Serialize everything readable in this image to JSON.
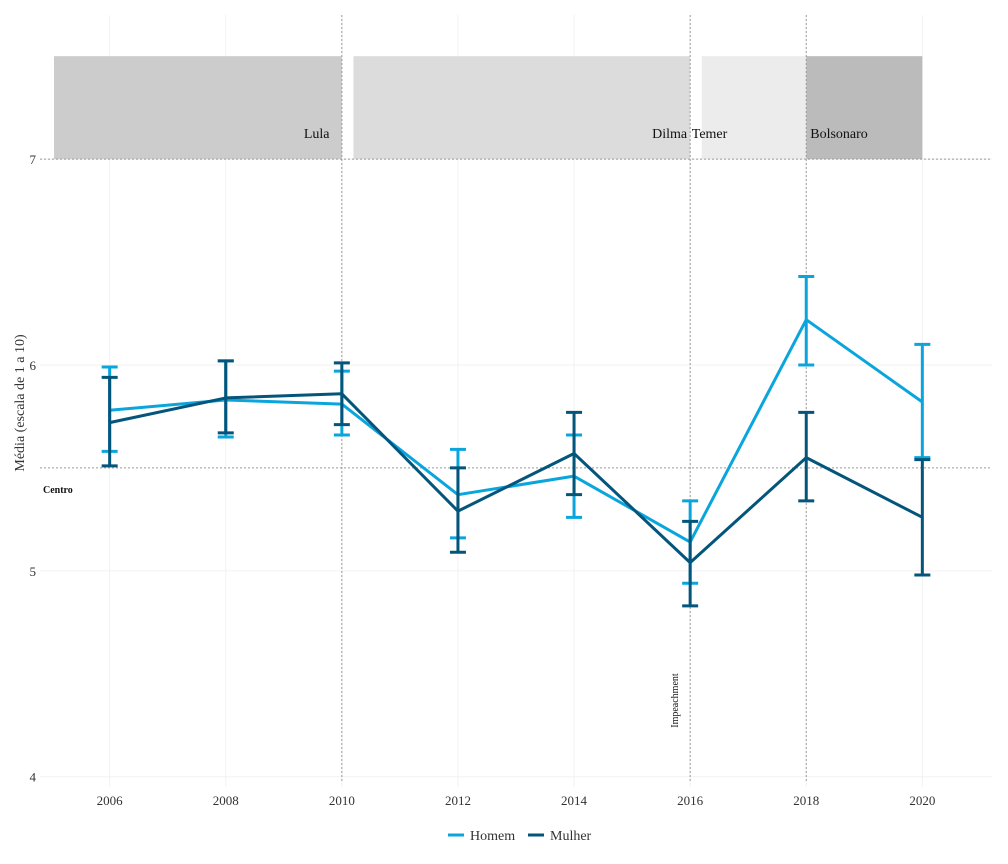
{
  "chart_data": {
    "type": "line",
    "title": "",
    "xlabel": "",
    "ylabel": "Média (escala de 1 a 10)",
    "x": [
      2006,
      2008,
      2010,
      2012,
      2014,
      2016,
      2018,
      2020
    ],
    "xlim": [
      2004.8,
      2021.2
    ],
    "ylim": [
      3.95,
      7.7
    ],
    "x_ticks": [
      "2006",
      "2008",
      "2010",
      "2012",
      "2014",
      "2016",
      "2018",
      "2020"
    ],
    "y_ticks": [
      4,
      5,
      6,
      7
    ],
    "y_tick_labels": [
      "4",
      "5",
      "6",
      "7"
    ],
    "series": [
      {
        "name": "Homem",
        "color": "#0aa5dd",
        "values": [
          5.78,
          5.83,
          5.81,
          5.37,
          5.46,
          5.14,
          6.22,
          5.82
        ],
        "lower": [
          5.58,
          5.65,
          5.66,
          5.16,
          5.26,
          4.94,
          6.0,
          5.55
        ],
        "upper": [
          5.99,
          6.02,
          5.97,
          5.59,
          5.66,
          5.34,
          6.43,
          6.1
        ]
      },
      {
        "name": "Mulher",
        "color": "#03557b",
        "values": [
          5.72,
          5.84,
          5.86,
          5.29,
          5.57,
          5.04,
          5.55,
          5.26
        ],
        "lower": [
          5.51,
          5.67,
          5.71,
          5.09,
          5.37,
          4.83,
          5.34,
          4.98
        ],
        "upper": [
          5.94,
          6.02,
          6.01,
          5.5,
          5.77,
          5.24,
          5.77,
          5.54
        ]
      }
    ],
    "reference_line": {
      "y": 5.5,
      "label": "Centro"
    },
    "vertical_lines": [
      2010,
      2016,
      2018
    ],
    "event": {
      "x": 2016,
      "label": "Impeachment"
    },
    "governments": [
      {
        "name": "Lula",
        "start": 2004.8,
        "end": 2010,
        "color": "#cccccc"
      },
      {
        "name": "Dilma",
        "start": 2010.2,
        "end": 2016,
        "color": "#dcdcdc"
      },
      {
        "name": "Temer",
        "start": 2016.2,
        "end": 2018,
        "color": "#ececec"
      },
      {
        "name": "Bolsonaro",
        "start": 2018,
        "end": 2020,
        "color": "#bbbbbb"
      }
    ],
    "band_range": [
      7,
      7.5
    ],
    "legend": {
      "position": "bottom",
      "entries": [
        "Homem",
        "Mulher"
      ]
    }
  }
}
